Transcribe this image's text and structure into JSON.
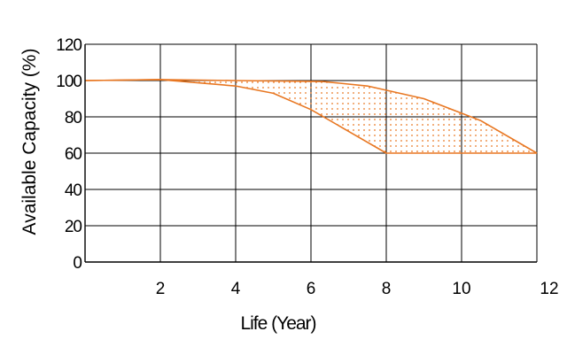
{
  "chart_data": {
    "type": "area",
    "title": "",
    "xlabel": "Life (Year)",
    "ylabel": "Available Capacity (%)",
    "xlim": [
      0,
      12
    ],
    "ylim": [
      0,
      120
    ],
    "x_ticks": [
      2,
      4,
      6,
      8,
      10,
      12
    ],
    "y_ticks": [
      0,
      20,
      40,
      60,
      80,
      100,
      120
    ],
    "grid": true,
    "line_color": "#E87722",
    "fill_pattern": "dotted",
    "band": {
      "upper": {
        "x": [
          0,
          2,
          4,
          6.3,
          7.5,
          9,
          10.5,
          12
        ],
        "y": [
          100,
          100.5,
          100,
          99.5,
          97,
          90,
          78,
          60
        ]
      },
      "lower": {
        "x": [
          0,
          2,
          4,
          5,
          6,
          7,
          8,
          12
        ],
        "y": [
          100,
          100.5,
          97,
          93,
          84,
          72,
          60,
          60
        ]
      }
    }
  }
}
